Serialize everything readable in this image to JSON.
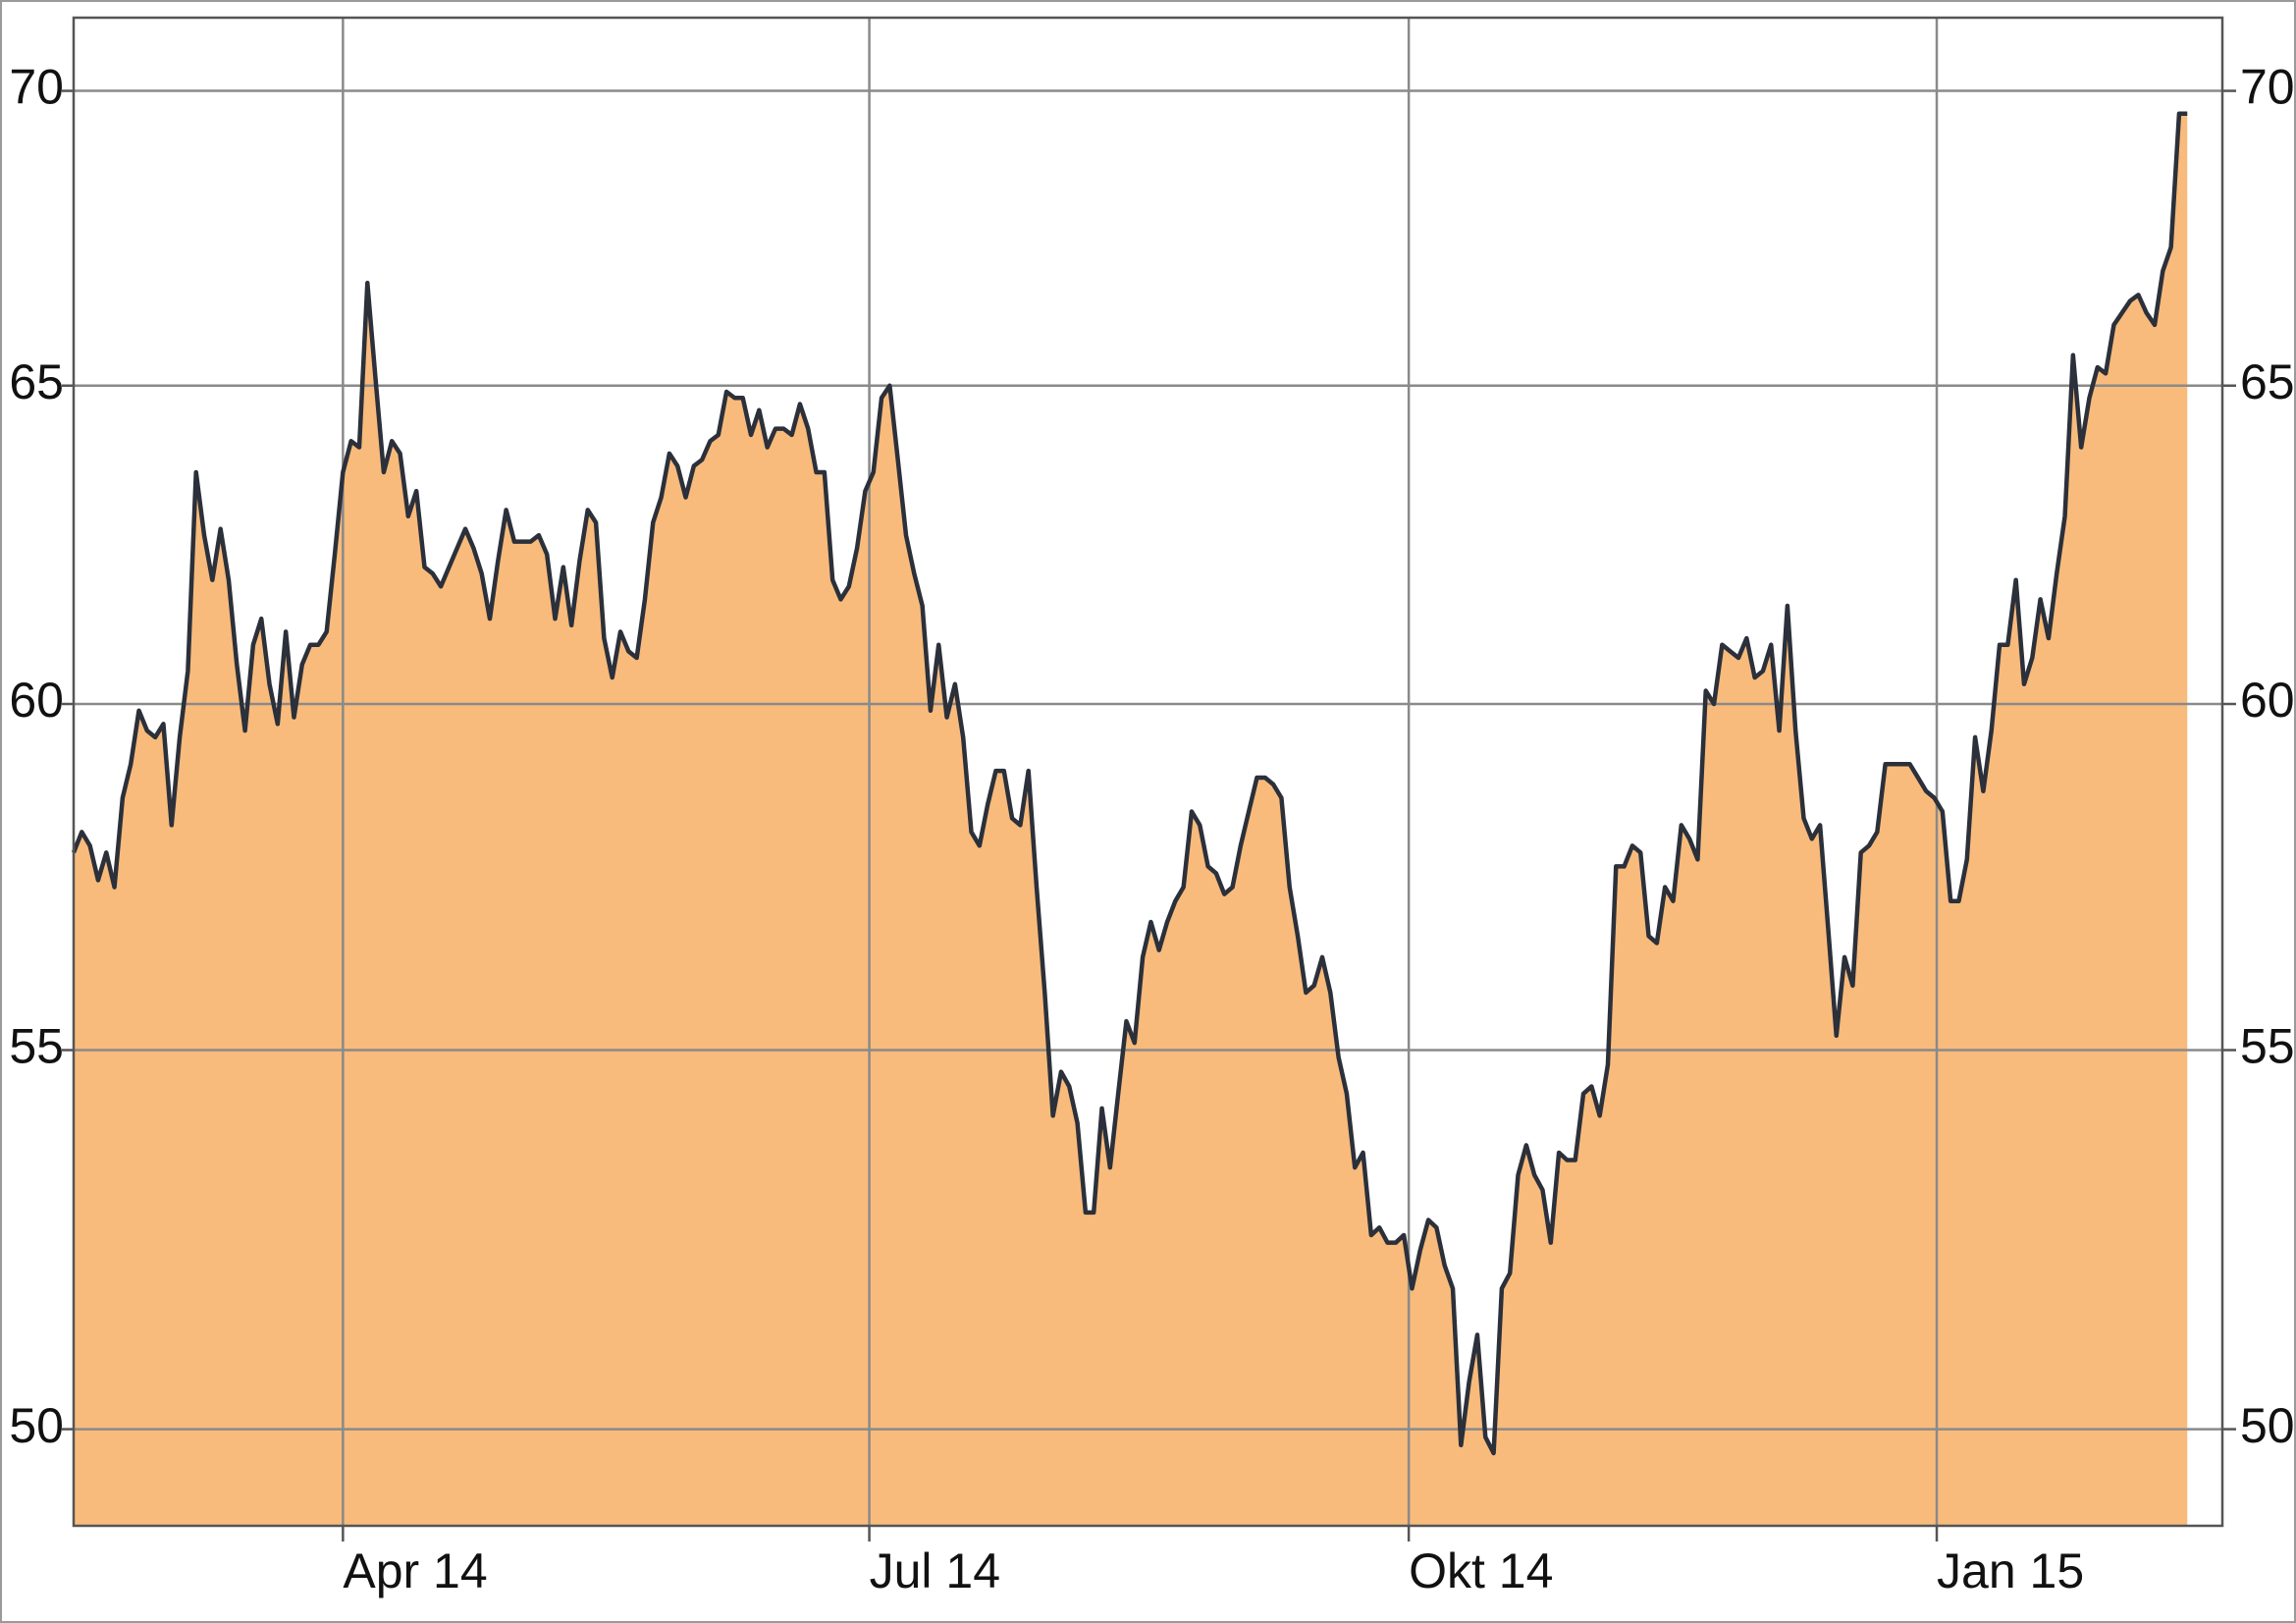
{
  "chart_data": {
    "type": "area",
    "log_scale": true,
    "grid": true,
    "color": "#f8bb7c",
    "line_color": "#2b303a",
    "xlim": [
      0,
      263.3
    ],
    "xticks": [
      {
        "value": 33,
        "label": "Apr 14"
      },
      {
        "value": 97.5,
        "label": "Jul 14"
      },
      {
        "value": 163.6,
        "label": "Okt 14"
      },
      {
        "value": 228.3,
        "label": "Jan 15"
      }
    ],
    "ylim": [
      48.8,
      71.3
    ],
    "yticks": [
      50,
      55,
      60,
      65,
      70
    ],
    "y2lim": [
      48.8,
      71.3
    ],
    "y2ticks": [
      50,
      55,
      60,
      65,
      70
    ],
    "values": [
      57.8,
      58.1,
      57.9,
      57.4,
      57.8,
      57.3,
      58.6,
      59.1,
      59.9,
      59.6,
      59.5,
      59.7,
      58.2,
      59.5,
      60.5,
      63.6,
      62.6,
      61.9,
      62.7,
      61.9,
      60.6,
      59.6,
      60.9,
      61.3,
      60.3,
      59.7,
      61.1,
      59.8,
      60.6,
      60.9,
      60.9,
      61.1,
      62.3,
      63.6,
      64.1,
      64.0,
      66.7,
      65.1,
      63.6,
      64.1,
      63.9,
      62.9,
      63.3,
      62.1,
      62.0,
      61.8,
      62.1,
      62.4,
      62.7,
      62.4,
      62.0,
      61.3,
      62.2,
      63.0,
      62.5,
      62.5,
      62.5,
      62.6,
      62.3,
      61.3,
      62.1,
      61.2,
      62.2,
      63.0,
      62.8,
      61.0,
      60.4,
      61.1,
      60.8,
      60.7,
      61.6,
      62.8,
      63.2,
      63.9,
      63.7,
      63.2,
      63.7,
      63.8,
      64.1,
      64.2,
      64.9,
      64.8,
      64.8,
      64.2,
      64.6,
      64.0,
      64.3,
      64.3,
      64.2,
      64.7,
      64.3,
      63.6,
      63.6,
      61.9,
      61.6,
      61.8,
      62.4,
      63.3,
      63.6,
      64.8,
      65.0,
      63.8,
      62.6,
      62.0,
      61.5,
      59.9,
      60.9,
      59.8,
      60.3,
      59.5,
      58.1,
      57.9,
      58.5,
      59.0,
      59.0,
      58.3,
      58.2,
      59.0,
      57.3,
      55.8,
      54.1,
      54.7,
      54.5,
      54.0,
      52.8,
      52.8,
      54.2,
      53.4,
      54.4,
      55.4,
      55.1,
      56.3,
      56.8,
      56.4,
      56.8,
      57.1,
      57.3,
      58.4,
      58.2,
      57.6,
      57.5,
      57.2,
      57.3,
      57.9,
      58.4,
      58.9,
      58.9,
      58.8,
      58.6,
      57.3,
      56.6,
      55.8,
      55.9,
      56.3,
      55.8,
      54.9,
      54.4,
      53.4,
      53.6,
      52.5,
      52.6,
      52.4,
      52.4,
      52.5,
      51.8,
      52.3,
      52.7,
      52.6,
      52.1,
      51.8,
      49.8,
      50.6,
      51.2,
      49.9,
      49.7,
      51.8,
      52.0,
      53.3,
      53.7,
      53.3,
      53.1,
      52.4,
      53.6,
      53.5,
      53.5,
      54.4,
      54.5,
      54.1,
      54.8,
      57.6,
      57.6,
      57.9,
      57.8,
      56.6,
      56.5,
      57.3,
      57.1,
      58.2,
      58.0,
      57.7,
      60.2,
      60.0,
      60.9,
      60.8,
      60.7,
      61.0,
      60.4,
      60.5,
      60.9,
      59.6,
      61.5,
      59.6,
      58.3,
      58.0,
      58.2,
      56.7,
      55.2,
      56.3,
      55.9,
      57.8,
      57.9,
      58.1,
      59.1,
      59.1,
      59.1,
      59.1,
      58.9,
      58.7,
      58.6,
      58.4,
      57.1,
      57.1,
      57.7,
      59.5,
      58.7,
      59.6,
      60.9,
      60.9,
      61.9,
      60.3,
      60.7,
      61.6,
      61.0,
      62.0,
      62.9,
      65.5,
      64.0,
      64.8,
      65.3,
      65.2,
      66.0,
      66.2,
      66.4,
      66.5,
      66.2,
      66.0,
      66.9,
      67.3,
      69.6,
      69.6
    ]
  }
}
